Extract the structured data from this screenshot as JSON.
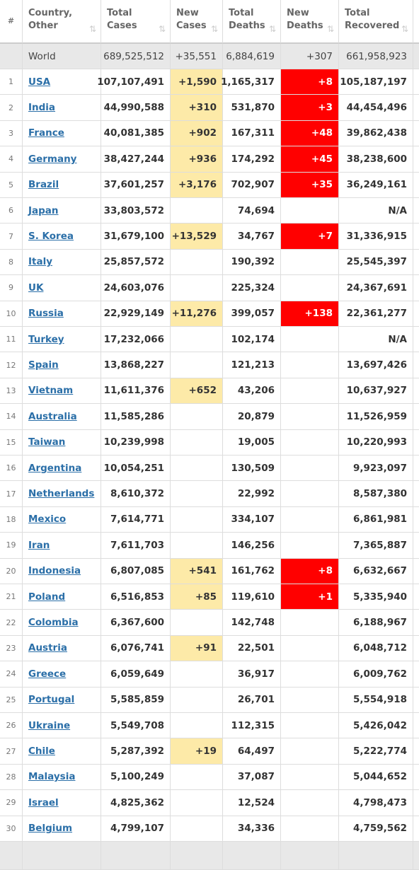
{
  "table": {
    "header": [
      "#",
      "Country,\nOther",
      "Total\nCases",
      "New\nCases",
      "Total\nDeaths",
      "New\nDeaths",
      "Total\nRecovered"
    ],
    "world": [
      "World",
      "689,525,512",
      "+35,551",
      "6,884,619",
      "+307",
      "661,958,923"
    ],
    "rows": [
      [
        "1",
        "USA",
        "107,107,491",
        "+1,590",
        "1,165,317",
        "+8",
        "105,187,197"
      ],
      [
        "2",
        "India",
        "44,990,588",
        "+310",
        "531,870",
        "+3",
        "44,454,496"
      ],
      [
        "3",
        "France",
        "40,081,385",
        "+902",
        "167,311",
        "+48",
        "39,862,438"
      ],
      [
        "4",
        "Germany",
        "38,427,244",
        "+936",
        "174,292",
        "+45",
        "38,238,600"
      ],
      [
        "5",
        "Brazil",
        "37,601,257",
        "+3,176",
        "702,907",
        "+35",
        "36,249,161"
      ],
      [
        "6",
        "Japan",
        "33,803,572",
        null,
        "74,694",
        null,
        "N/A"
      ],
      [
        "7",
        "S. Korea",
        "31,679,100",
        "+13,529",
        "34,767",
        "+7",
        "31,336,915"
      ],
      [
        "8",
        "Italy",
        "25,857,572",
        null,
        "190,392",
        null,
        "25,545,397"
      ],
      [
        "9",
        "UK",
        "24,603,076",
        null,
        "225,324",
        null,
        "24,367,691"
      ],
      [
        "10",
        "Russia",
        "22,929,149",
        "+11,276",
        "399,057",
        "+138",
        "22,361,277"
      ],
      [
        "11",
        "Turkey",
        "17,232,066",
        null,
        "102,174",
        null,
        "N/A"
      ],
      [
        "12",
        "Spain",
        "13,868,227",
        null,
        "121,213",
        null,
        "13,697,426"
      ],
      [
        "13",
        "Vietnam",
        "11,611,376",
        "+652",
        "43,206",
        null,
        "10,637,927"
      ],
      [
        "14",
        "Australia",
        "11,585,286",
        null,
        "20,879",
        null,
        "11,526,959"
      ],
      [
        "15",
        "Taiwan",
        "10,239,998",
        null,
        "19,005",
        null,
        "10,220,993"
      ],
      [
        "16",
        "Argentina",
        "10,054,251",
        null,
        "130,509",
        null,
        "9,923,097"
      ],
      [
        "17",
        "Netherlands",
        "8,610,372",
        null,
        "22,992",
        null,
        "8,587,380"
      ],
      [
        "18",
        "Mexico",
        "7,614,771",
        null,
        "334,107",
        null,
        "6,861,981"
      ],
      [
        "19",
        "Iran",
        "7,611,703",
        null,
        "146,256",
        null,
        "7,365,887"
      ],
      [
        "20",
        "Indonesia",
        "6,807,085",
        "+541",
        "161,762",
        "+8",
        "6,632,667"
      ],
      [
        "21",
        "Poland",
        "6,516,853",
        "+85",
        "119,610",
        "+1",
        "5,335,940"
      ],
      [
        "22",
        "Colombia",
        "6,367,600",
        null,
        "142,748",
        null,
        "6,188,967"
      ],
      [
        "23",
        "Austria",
        "6,076,741",
        "+91",
        "22,501",
        null,
        "6,048,712"
      ],
      [
        "24",
        "Greece",
        "6,059,649",
        null,
        "36,917",
        null,
        "6,009,762"
      ],
      [
        "25",
        "Portugal",
        "5,585,859",
        null,
        "26,701",
        null,
        "5,554,918"
      ],
      [
        "26",
        "Ukraine",
        "5,549,708",
        null,
        "112,315",
        null,
        "5,426,042"
      ],
      [
        "27",
        "Chile",
        "5,287,392",
        "+19",
        "64,497",
        null,
        "5,222,774"
      ],
      [
        "28",
        "Malaysia",
        "5,100,249",
        null,
        "37,087",
        null,
        "5,044,652"
      ],
      [
        "29",
        "Israel",
        "4,825,362",
        null,
        "12,524",
        null,
        "4,798,473"
      ],
      [
        "30",
        "Belgium",
        "4,799,107",
        null,
        "34,336",
        null,
        "4,759,562"
      ]
    ]
  }
}
